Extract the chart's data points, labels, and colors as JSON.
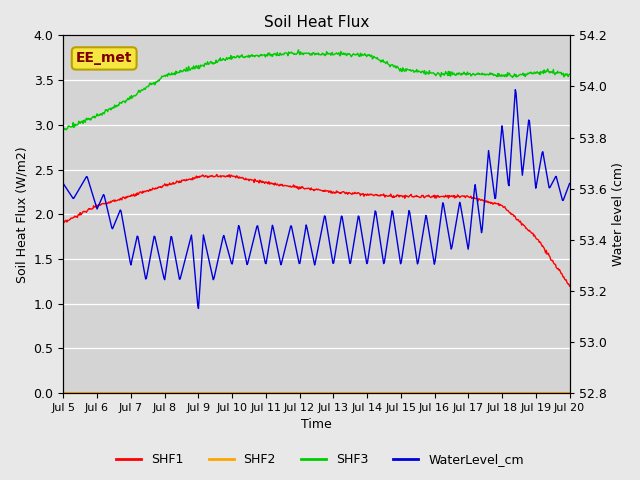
{
  "title": "Soil Heat Flux",
  "ylabel_left": "Soil Heat Flux (W/m2)",
  "ylabel_right": "Water level (cm)",
  "xlabel": "Time",
  "ylim_left": [
    0.0,
    4.0
  ],
  "ylim_right": [
    52.8,
    54.2
  ],
  "background_color": "#e8e8e8",
  "plot_bg_color": "#d4d4d4",
  "annotation_text": "EE_met",
  "annotation_box_color": "#f5e642",
  "annotation_text_color": "#800000",
  "colors": {
    "SHF1": "#ff0000",
    "SHF2": "#ffa500",
    "SHF3": "#00cc00",
    "WaterLevel_cm": "#0000dd"
  },
  "x_tick_labels": [
    "Jul 5",
    "Jul 6",
    "Jul 7",
    "Jul 8",
    "Jul 9",
    "Jul 10",
    "Jul 11",
    "Jul 12",
    "Jul 13",
    "Jul 14",
    "Jul 15",
    "Jul 16",
    "Jul 17",
    "Jul 18",
    "Jul 19",
    "Jul 20"
  ],
  "x_tick_positions": [
    0,
    1,
    2,
    3,
    4,
    5,
    6,
    7,
    8,
    9,
    10,
    11,
    12,
    13,
    14,
    15
  ],
  "yticks_left": [
    0.0,
    0.5,
    1.0,
    1.5,
    2.0,
    2.5,
    3.0,
    3.5,
    4.0
  ],
  "yticks_right": [
    52.8,
    53.0,
    53.2,
    53.4,
    53.6,
    53.8,
    54.0,
    54.2
  ]
}
